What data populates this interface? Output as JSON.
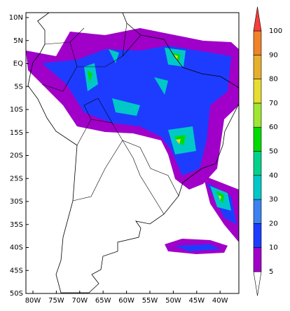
{
  "map": {
    "lat_labels": [
      "10N",
      "5N",
      "EQ",
      "5S",
      "10S",
      "15S",
      "20S",
      "25S",
      "30S",
      "35S",
      "40S",
      "45S",
      "50S"
    ],
    "lon_labels": [
      "80W",
      "75W",
      "70W",
      "65W",
      "60W",
      "55W",
      "50W",
      "45W",
      "40W"
    ]
  },
  "colorbar": {
    "levels": [
      5,
      10,
      20,
      30,
      40,
      50,
      60,
      70,
      80,
      90,
      100
    ],
    "colors": [
      "#ffffff",
      "#a000c8",
      "#1e3cff",
      "#3c82f0",
      "#00c8c8",
      "#00d28c",
      "#00dc00",
      "#a0e632",
      "#e6dc32",
      "#e6af2d",
      "#f08228",
      "#fa3c3c"
    ]
  }
}
